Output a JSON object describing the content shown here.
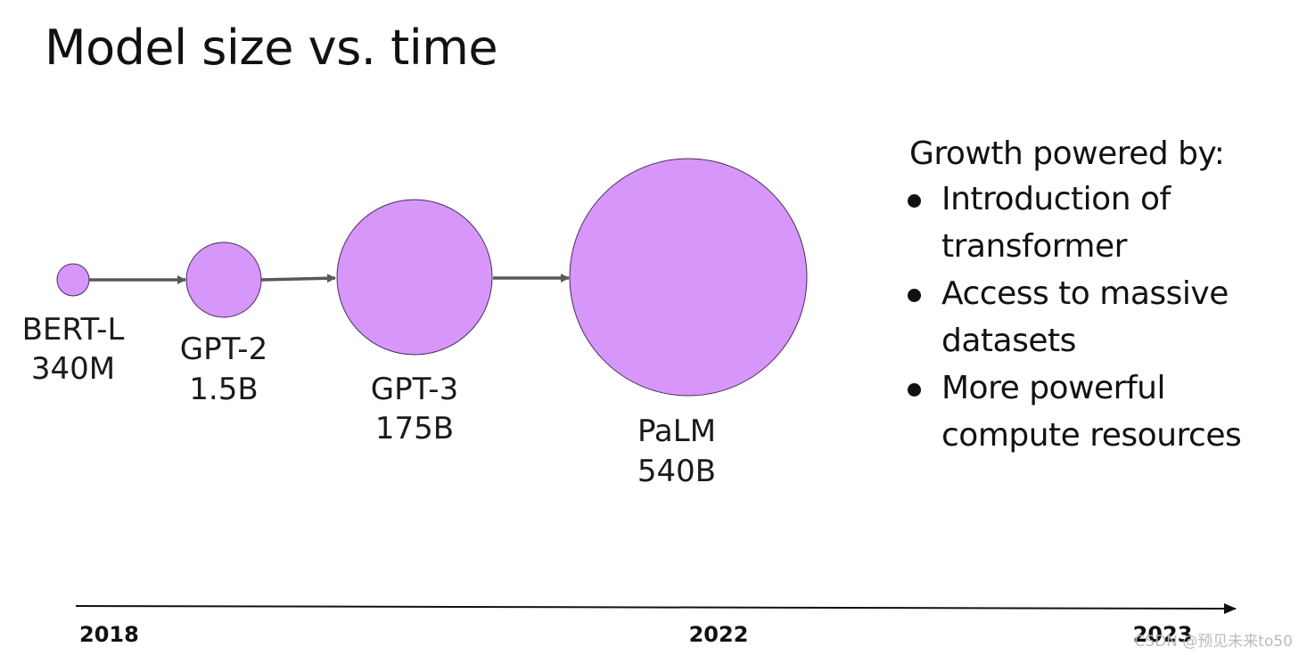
{
  "title": "Model size vs. time",
  "models": [
    {
      "name": "BERT-L",
      "size": "340M"
    },
    {
      "name": "GPT-2",
      "size": "1.5B"
    },
    {
      "name": "GPT-3",
      "size": "175B"
    },
    {
      "name": "PaLM",
      "size": "540B"
    }
  ],
  "timeline": {
    "labels": [
      "2018",
      "2022",
      "2023"
    ]
  },
  "growth": {
    "heading": "Growth powered by:",
    "items": [
      "Introduction of transformer",
      "Access to massive datasets",
      "More powerful compute resources"
    ]
  },
  "watermark": "CSDN @预见未来to50",
  "colors": {
    "bubble_fill": "#d696fa",
    "bubble_stroke": "#4a2c5a",
    "arrow": "#595959",
    "axis": "#111111"
  }
}
